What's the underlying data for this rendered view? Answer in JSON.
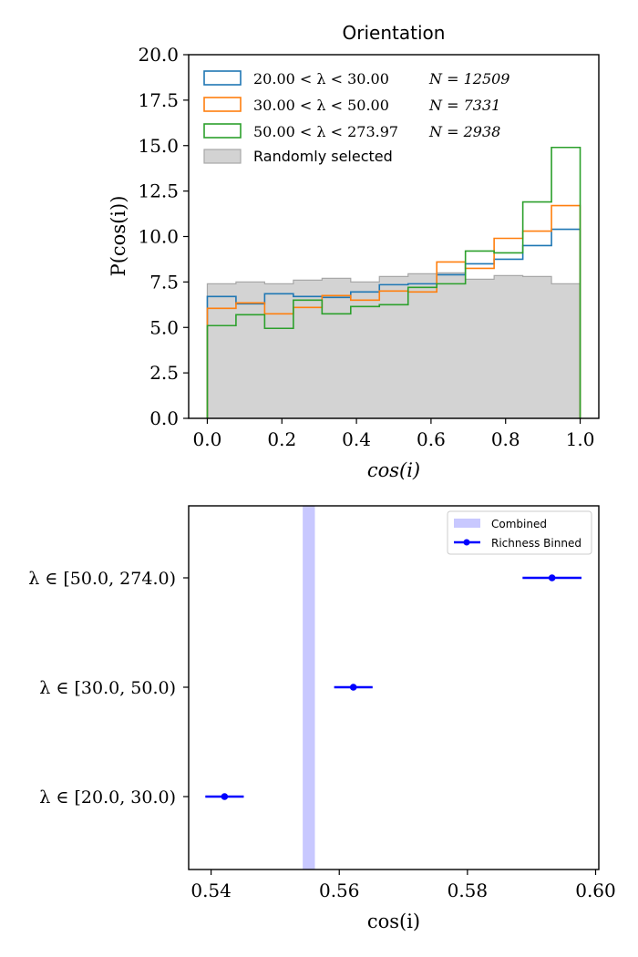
{
  "chart_data": [
    {
      "type": "histogram",
      "title": "Orientation",
      "xlabel": "cos(i)",
      "ylabel": "P(cos(i))",
      "xlim": [
        -0.05,
        1.05
      ],
      "ylim": [
        0,
        20
      ],
      "xticks": [
        "0.0",
        "0.2",
        "0.4",
        "0.6",
        "0.8",
        "1.0"
      ],
      "yticks": [
        "0.0",
        "2.5",
        "5.0",
        "7.5",
        "10.0",
        "12.5",
        "15.0",
        "17.5",
        "20.0"
      ],
      "bin_edges": [
        0,
        0.0769,
        0.1538,
        0.2308,
        0.3077,
        0.3846,
        0.4615,
        0.5385,
        0.6154,
        0.6923,
        0.7692,
        0.8462,
        0.9231,
        1.0
      ],
      "background": {
        "name": "Randomly selected",
        "color": "#d3d3d3",
        "values": [
          7.4,
          7.5,
          7.4,
          7.6,
          7.7,
          7.5,
          7.8,
          7.95,
          8.0,
          7.65,
          7.85,
          7.8,
          7.4
        ]
      },
      "series": [
        {
          "name": "20.00 < λ < 30.00",
          "n_label": "N = 12509",
          "color": "#1f77b4",
          "values": [
            6.7,
            6.3,
            6.85,
            6.7,
            6.65,
            6.95,
            7.35,
            7.4,
            7.9,
            8.5,
            8.75,
            9.5,
            10.4
          ]
        },
        {
          "name": "30.00 < λ < 50.00",
          "n_label": "N = 7331",
          "color": "#ff7f0e",
          "values": [
            6.05,
            6.35,
            5.75,
            6.1,
            6.75,
            6.5,
            7.0,
            6.95,
            8.6,
            8.25,
            9.9,
            10.3,
            11.7
          ]
        },
        {
          "name": "50.00 < λ < 273.97",
          "n_label": "N = 2938",
          "color": "#2ca02c",
          "values": [
            5.1,
            5.7,
            4.95,
            6.5,
            5.75,
            6.15,
            6.25,
            7.2,
            7.4,
            9.2,
            9.1,
            11.9,
            14.9
          ]
        }
      ]
    },
    {
      "type": "errorbar",
      "xlabel": "cos(i)",
      "xlim": [
        0.5365,
        0.6005
      ],
      "xticks": [
        "0.54",
        "0.56",
        "0.58",
        "0.60"
      ],
      "combined": {
        "name": "Combined",
        "color": "#c8c8ff",
        "range": [
          0.5543,
          0.5562
        ]
      },
      "binned": {
        "name": "Richness Binned",
        "color": "#0000ff",
        "points": [
          {
            "label": "λ ∈ [20.0, 30.0)",
            "value": 0.5421,
            "err": 0.003
          },
          {
            "label": "λ ∈ [30.0, 50.0)",
            "value": 0.5622,
            "err": 0.003
          },
          {
            "label": "λ ∈ [50.0, 274.0)",
            "value": 0.5932,
            "err": 0.0046
          }
        ]
      }
    }
  ]
}
